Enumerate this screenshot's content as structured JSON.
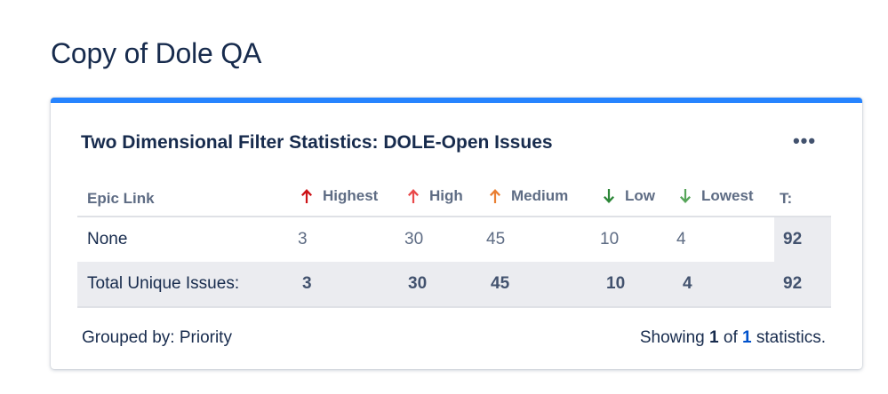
{
  "page": {
    "title": "Copy of Dole QA"
  },
  "gadget": {
    "title": "Two Dimensional Filter Statistics: DOLE-Open Issues",
    "more_label": "•••",
    "accent_color": "#2684ff"
  },
  "table": {
    "headers": {
      "epic_link": "Epic Link",
      "highest": "Highest",
      "high": "High",
      "medium": "Medium",
      "low": "Low",
      "lowest": "Lowest",
      "total": "T:"
    },
    "priority_colors": {
      "highest": "#cd1317",
      "high": "#e9494a",
      "medium": "#e97f33",
      "low": "#2d8738",
      "lowest": "#57a55a"
    },
    "rows": [
      {
        "label": "None",
        "highest": "3",
        "high": "30",
        "medium": "45",
        "low": "10",
        "lowest": "4",
        "total": "92"
      }
    ],
    "total_row": {
      "label": "Total Unique Issues:",
      "highest": "3",
      "high": "30",
      "medium": "45",
      "low": "10",
      "lowest": "4",
      "total": "92"
    }
  },
  "footer": {
    "grouped_by": "Grouped by: Priority",
    "showing_prefix": "Showing",
    "showing_current": "1",
    "showing_of": "of",
    "showing_total": "1",
    "showing_suffix": "statistics."
  }
}
